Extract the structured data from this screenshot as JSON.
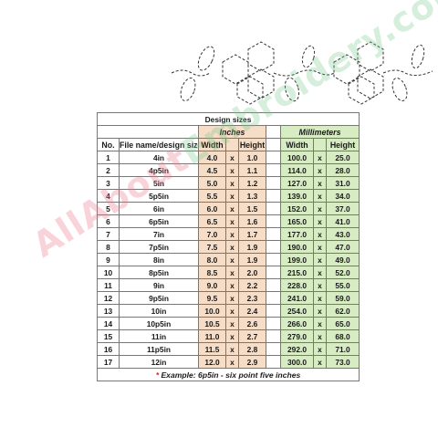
{
  "table": {
    "title": "Design sizes",
    "inches_label": "Inches",
    "mm_label": "Millimeters",
    "col_no": "No.",
    "col_name": "File name/design size",
    "col_width": "Width",
    "col_height": "Height",
    "x_sep": "x",
    "rows": [
      {
        "no": "1",
        "name": "4in",
        "w_in": "4.0",
        "h_in": "1.0",
        "w_mm": "100.0",
        "h_mm": "25.0"
      },
      {
        "no": "2",
        "name": "4p5in",
        "w_in": "4.5",
        "h_in": "1.1",
        "w_mm": "114.0",
        "h_mm": "28.0"
      },
      {
        "no": "3",
        "name": "5in",
        "w_in": "5.0",
        "h_in": "1.2",
        "w_mm": "127.0",
        "h_mm": "31.0"
      },
      {
        "no": "4",
        "name": "5p5in",
        "w_in": "5.5",
        "h_in": "1.3",
        "w_mm": "139.0",
        "h_mm": "34.0"
      },
      {
        "no": "5",
        "name": "6in",
        "w_in": "6.0",
        "h_in": "1.5",
        "w_mm": "152.0",
        "h_mm": "37.0"
      },
      {
        "no": "6",
        "name": "6p5in",
        "w_in": "6.5",
        "h_in": "1.6",
        "w_mm": "165.0",
        "h_mm": "41.0"
      },
      {
        "no": "7",
        "name": "7in",
        "w_in": "7.0",
        "h_in": "1.7",
        "w_mm": "177.0",
        "h_mm": "43.0"
      },
      {
        "no": "8",
        "name": "7p5in",
        "w_in": "7.5",
        "h_in": "1.9",
        "w_mm": "190.0",
        "h_mm": "47.0"
      },
      {
        "no": "9",
        "name": "8in",
        "w_in": "8.0",
        "h_in": "1.9",
        "w_mm": "199.0",
        "h_mm": "49.0"
      },
      {
        "no": "10",
        "name": "8p5in",
        "w_in": "8.5",
        "h_in": "2.0",
        "w_mm": "215.0",
        "h_mm": "52.0"
      },
      {
        "no": "11",
        "name": "9in",
        "w_in": "9.0",
        "h_in": "2.2",
        "w_mm": "228.0",
        "h_mm": "55.0"
      },
      {
        "no": "12",
        "name": "9p5in",
        "w_in": "9.5",
        "h_in": "2.3",
        "w_mm": "241.0",
        "h_mm": "59.0"
      },
      {
        "no": "13",
        "name": "10in",
        "w_in": "10.0",
        "h_in": "2.4",
        "w_mm": "254.0",
        "h_mm": "62.0"
      },
      {
        "no": "14",
        "name": "10p5in",
        "w_in": "10.5",
        "h_in": "2.6",
        "w_mm": "266.0",
        "h_mm": "65.0"
      },
      {
        "no": "15",
        "name": "11in",
        "w_in": "11.0",
        "h_in": "2.7",
        "w_mm": "279.0",
        "h_mm": "68.0"
      },
      {
        "no": "16",
        "name": "11p5in",
        "w_in": "11.5",
        "h_in": "2.8",
        "w_mm": "292.0",
        "h_mm": "71.0"
      },
      {
        "no": "17",
        "name": "12in",
        "w_in": "12.0",
        "h_in": "2.9",
        "w_mm": "300.0",
        "h_mm": "73.0"
      }
    ],
    "note_star": "*",
    "note": "Example: 6p5in - six point five inches"
  },
  "watermark": {
    "part1": "AllAbout",
    "part2": "Embroidery.com"
  },
  "colors": {
    "inches_bg": "#f5ddc7",
    "mm_bg": "#d7ecc3",
    "star": "#dd2222",
    "stitch": "#333333"
  }
}
